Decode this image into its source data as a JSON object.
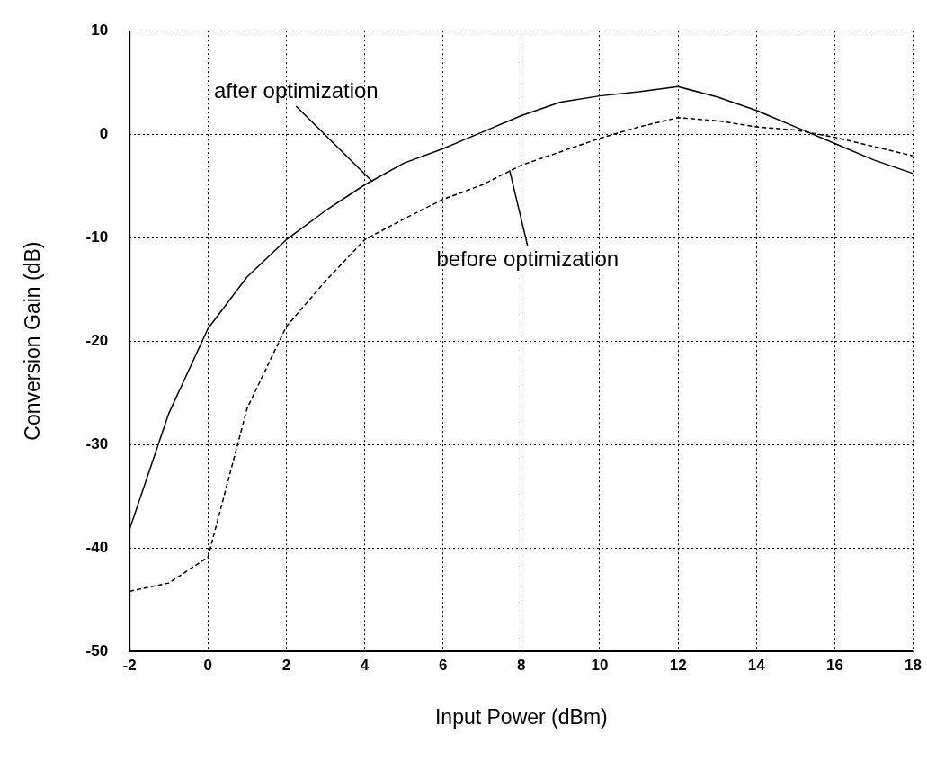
{
  "chart_data": {
    "type": "line",
    "xlabel": "Input Power (dBm)",
    "ylabel": "Conversion Gain (dB)",
    "x": [
      -2,
      -1,
      0,
      1,
      2,
      3,
      4,
      5,
      6,
      7,
      8,
      9,
      10,
      11,
      12,
      13,
      14,
      15,
      16,
      17,
      18
    ],
    "series": [
      {
        "color": "#000000",
        "line_style": "solid",
        "values": [
          -38.2,
          -27.0,
          -18.8,
          -13.8,
          -10.2,
          -7.4,
          -4.9,
          -2.8,
          -1.4,
          0.2,
          1.8,
          3.1,
          3.7,
          4.1,
          4.6,
          3.6,
          2.3,
          0.7,
          -0.9,
          -2.5,
          -3.8
        ]
      },
      {
        "color": "#000000",
        "line_style": "dashed",
        "values": [
          -44.2,
          -43.4,
          -40.9,
          -26.5,
          -18.6,
          -14.2,
          -10.2,
          -8.2,
          -6.3,
          -4.9,
          -3.0,
          -1.7,
          -0.4,
          0.7,
          1.6,
          1.3,
          0.7,
          0.4,
          -0.3,
          -1.2,
          -2.1
        ]
      }
    ],
    "annotations": [
      {
        "text": "after optimization",
        "x": 4.2,
        "y": -4.6
      },
      {
        "text": "before optimization",
        "x": 7.7,
        "y": -3.5
      }
    ],
    "xlim": [
      -2,
      18
    ],
    "xticks": [
      -2,
      0,
      2,
      4,
      6,
      8,
      10,
      12,
      14,
      16,
      18
    ],
    "ylim": [
      -50,
      10
    ],
    "yticks": [
      -50,
      -40,
      -30,
      -20,
      -10,
      0,
      10
    ],
    "grid": true,
    "marker": "none"
  }
}
